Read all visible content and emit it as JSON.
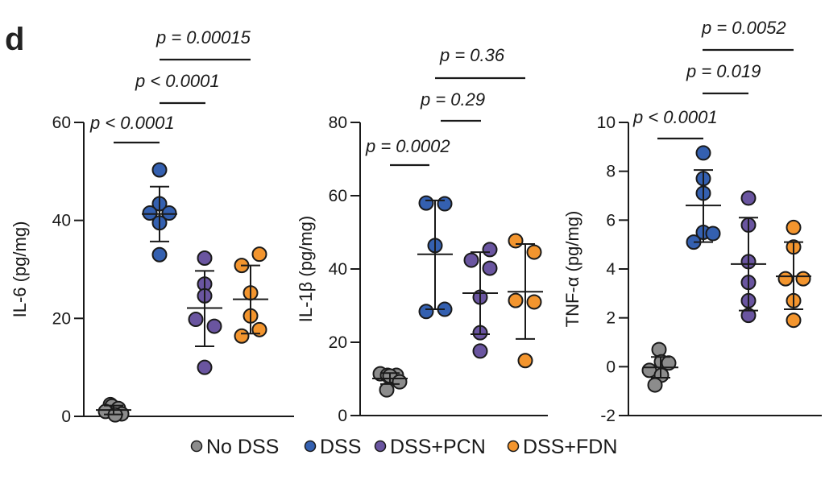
{
  "panel_label": "d",
  "legend": [
    {
      "name": "No DSS",
      "color": "#8c8c8c"
    },
    {
      "name": "DSS",
      "color": "#3460b0"
    },
    {
      "name": "DSS+PCN",
      "color": "#6a55a0"
    },
    {
      "name": "DSS+FDN",
      "color": "#f3952e"
    }
  ],
  "chart_data": [
    {
      "type": "scatter",
      "title": "",
      "ylabel": "IL-6 (pg/mg)",
      "xlabel": "",
      "ylim": [
        0,
        60
      ],
      "yticks": [
        0,
        20,
        40,
        60
      ],
      "categories": [
        "No DSS",
        "DSS",
        "DSS+PCN",
        "DSS+FDN"
      ],
      "series": [
        {
          "name": "No DSS",
          "values": [
            2.4,
            2.1,
            1.6,
            1.0,
            0.5,
            0.3
          ],
          "mean": 1.3,
          "sd_upper": 2.2,
          "sd_lower": 0.4
        },
        {
          "name": "DSS",
          "values": [
            50.3,
            43.4,
            41.5,
            41.5,
            39.5,
            33.0
          ],
          "mean": 41.3,
          "sd_upper": 46.9,
          "sd_lower": 35.7
        },
        {
          "name": "DSS+PCN",
          "values": [
            32.3,
            27.0,
            24.6,
            19.8,
            18.4,
            10.0
          ],
          "mean": 22.1,
          "sd_upper": 29.7,
          "sd_lower": 14.3
        },
        {
          "name": "DSS+FDN",
          "values": [
            33.1,
            30.8,
            25.2,
            20.5,
            17.7,
            16.4
          ],
          "mean": 23.9,
          "sd_upper": 30.8,
          "sd_lower": 16.9
        }
      ],
      "comparisons": [
        {
          "from": "No DSS",
          "to": "DSS",
          "label": "p < 0.0001"
        },
        {
          "from": "DSS",
          "to": "DSS+PCN",
          "label": "p < 0.0001"
        },
        {
          "from": "DSS",
          "to": "DSS+FDN",
          "label": "p = 0.00015"
        }
      ]
    },
    {
      "type": "scatter",
      "title": "",
      "ylabel": "IL-1β (pg/mg)",
      "xlabel": "",
      "ylim": [
        0,
        80
      ],
      "yticks": [
        0,
        20,
        40,
        60,
        80
      ],
      "categories": [
        "No DSS",
        "DSS",
        "DSS+PCN",
        "DSS+FDN"
      ],
      "series": [
        {
          "name": "No DSS",
          "values": [
            11.4,
            11.0,
            11.0,
            10.8,
            9.2,
            7.0
          ],
          "mean": 10.1,
          "sd_upper": 11.6,
          "sd_lower": 8.6
        },
        {
          "name": "DSS",
          "values": [
            58.0,
            57.8,
            46.4,
            29.0,
            28.4
          ],
          "mean": 44.0,
          "sd_upper": 58.7,
          "sd_lower": 29.0
        },
        {
          "name": "DSS+PCN",
          "values": [
            45.3,
            42.4,
            40.2,
            32.3,
            22.6,
            17.6
          ],
          "mean": 33.4,
          "sd_upper": 44.6,
          "sd_lower": 22.2
        },
        {
          "name": "DSS+FDN",
          "values": [
            47.7,
            44.6,
            31.4,
            31.0,
            15.0
          ],
          "mean": 33.8,
          "sd_upper": 46.8,
          "sd_lower": 20.9
        }
      ],
      "comparisons": [
        {
          "from": "No DSS",
          "to": "DSS",
          "label": "p = 0.0002"
        },
        {
          "from": "DSS",
          "to": "DSS+PCN",
          "label": "p = 0.29"
        },
        {
          "from": "DSS",
          "to": "DSS+FDN",
          "label": "p = 0.36"
        }
      ]
    },
    {
      "type": "scatter",
      "title": "",
      "ylabel": "TNF-α (pg/mg)",
      "xlabel": "",
      "ylim": [
        -2,
        10
      ],
      "yticks": [
        -2,
        0,
        2,
        4,
        6,
        8,
        10
      ],
      "categories": [
        "No DSS",
        "DSS",
        "DSS+PCN",
        "DSS+FDN"
      ],
      "series": [
        {
          "name": "No DSS",
          "values": [
            0.7,
            0.2,
            0.15,
            -0.15,
            -0.35,
            -0.75
          ],
          "mean": -0.03,
          "sd_upper": 0.4,
          "sd_lower": -0.45
        },
        {
          "name": "DSS",
          "values": [
            8.75,
            7.7,
            7.1,
            5.5,
            5.45,
            5.1
          ],
          "mean": 6.6,
          "sd_upper": 8.05,
          "sd_lower": 5.1
        },
        {
          "name": "DSS+PCN",
          "values": [
            6.9,
            5.8,
            4.3,
            3.45,
            2.7,
            2.1
          ],
          "mean": 4.2,
          "sd_upper": 6.1,
          "sd_lower": 2.3
        },
        {
          "name": "DSS+FDN",
          "values": [
            5.7,
            4.9,
            3.6,
            3.6,
            2.7,
            1.9
          ],
          "mean": 3.7,
          "sd_upper": 5.1,
          "sd_lower": 2.35
        }
      ],
      "comparisons": [
        {
          "from": "No DSS",
          "to": "DSS",
          "label": "p < 0.0001"
        },
        {
          "from": "DSS",
          "to": "DSS+PCN",
          "label": "p = 0.019"
        },
        {
          "from": "DSS",
          "to": "DSS+FDN",
          "label": "p = 0.0052"
        }
      ]
    }
  ]
}
